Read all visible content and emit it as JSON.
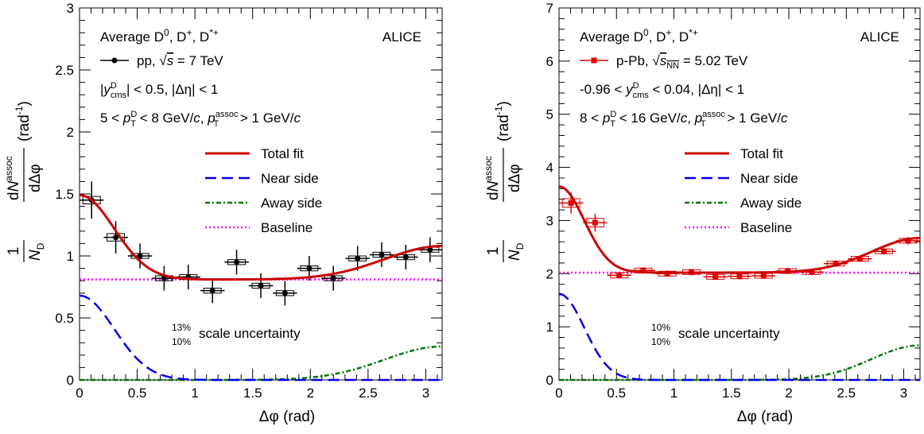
{
  "chart_data": [
    {
      "type": "scatter",
      "xlabel": "Δφ (rad)",
      "ylabel": "1/N_D dN^assoc/dΔφ (rad^-1)",
      "xlim": [
        0,
        3.14159
      ],
      "ylim": [
        0,
        3
      ],
      "xticks": [
        0,
        0.5,
        1,
        1.5,
        2,
        2.5,
        3
      ],
      "yticks": [
        0,
        0.5,
        1,
        1.5,
        2,
        2.5,
        3
      ],
      "xtick_labels": [
        "0",
        "0.5",
        "1",
        "1.5",
        "2",
        "2.5",
        "3"
      ],
      "ytick_labels": [
        "0",
        "0.5",
        "1",
        "1.5",
        "2",
        "2.5",
        "3"
      ],
      "experiment": "ALICE",
      "header": "Average D^0, D^+, D^*+",
      "data_legend": "pp, √s = 7 TeV",
      "cut_lines": [
        "|y^D_cms| < 0.5, |Δη| < 1",
        "5 < p^D_T < 8 GeV/c, p^assoc_T > 1 GeV/c"
      ],
      "legend": [
        "Total fit",
        "Near side",
        "Away side",
        "Baseline"
      ],
      "scale_uncertainty": {
        "up": "13%",
        "down": "10%",
        "text": "scale uncertainty"
      },
      "marker_color": "#000000",
      "fit": {
        "baseline": 0.81,
        "near_amp": 0.68,
        "near_sigma": 0.3,
        "away_amp": 0.27,
        "away_sigma": 0.5
      },
      "points": [
        {
          "x": 0.105,
          "y": 1.45,
          "yerr": 0.15,
          "sys": 0.03
        },
        {
          "x": 0.314,
          "y": 1.15,
          "yerr": 0.13,
          "sys": 0.03
        },
        {
          "x": 0.524,
          "y": 1.0,
          "yerr": 0.1,
          "sys": 0.02
        },
        {
          "x": 0.733,
          "y": 0.82,
          "yerr": 0.1,
          "sys": 0.02
        },
        {
          "x": 0.942,
          "y": 0.83,
          "yerr": 0.1,
          "sys": 0.02
        },
        {
          "x": 1.152,
          "y": 0.72,
          "yerr": 0.1,
          "sys": 0.02
        },
        {
          "x": 1.361,
          "y": 0.95,
          "yerr": 0.1,
          "sys": 0.02
        },
        {
          "x": 1.571,
          "y": 0.76,
          "yerr": 0.1,
          "sys": 0.02
        },
        {
          "x": 1.78,
          "y": 0.7,
          "yerr": 0.1,
          "sys": 0.02
        },
        {
          "x": 1.99,
          "y": 0.9,
          "yerr": 0.1,
          "sys": 0.02
        },
        {
          "x": 2.199,
          "y": 0.82,
          "yerr": 0.1,
          "sys": 0.02
        },
        {
          "x": 2.409,
          "y": 0.98,
          "yerr": 0.1,
          "sys": 0.02
        },
        {
          "x": 2.618,
          "y": 1.01,
          "yerr": 0.1,
          "sys": 0.02
        },
        {
          "x": 2.827,
          "y": 0.99,
          "yerr": 0.1,
          "sys": 0.02
        },
        {
          "x": 3.037,
          "y": 1.05,
          "yerr": 0.1,
          "sys": 0.02
        }
      ]
    },
    {
      "type": "scatter",
      "xlabel": "Δφ (rad)",
      "ylabel": "1/N_D dN^assoc/dΔφ (rad^-1)",
      "xlim": [
        0,
        3.14159
      ],
      "ylim": [
        0,
        7
      ],
      "xticks": [
        0,
        0.5,
        1,
        1.5,
        2,
        2.5,
        3
      ],
      "yticks": [
        0,
        1,
        2,
        3,
        4,
        5,
        6,
        7
      ],
      "xtick_labels": [
        "0",
        "0.5",
        "1",
        "1.5",
        "2",
        "2.5",
        "3"
      ],
      "ytick_labels": [
        "0",
        "1",
        "2",
        "3",
        "4",
        "5",
        "6",
        "7"
      ],
      "experiment": "ALICE",
      "header": "Average D^0, D^+, D^*+",
      "data_legend": "p-Pb, √s_NN = 5.02 TeV",
      "cut_lines": [
        "-0.96 < y^D_cms < 0.04, |Δη| < 1",
        "8 < p^D_T < 16 GeV/c, p^assoc_T > 1 GeV/c"
      ],
      "legend": [
        "Total fit",
        "Near side",
        "Away side",
        "Baseline"
      ],
      "scale_uncertainty": {
        "up": "10%",
        "down": "10%",
        "text": "scale uncertainty"
      },
      "marker_color": "#e00000",
      "fit": {
        "baseline": 2.02,
        "near_amp": 1.62,
        "near_sigma": 0.22,
        "away_amp": 0.65,
        "away_sigma": 0.42
      },
      "points": [
        {
          "x": 0.105,
          "y": 3.33,
          "yerr": 0.2,
          "sys": 0.08
        },
        {
          "x": 0.314,
          "y": 2.96,
          "yerr": 0.17,
          "sys": 0.08
        },
        {
          "x": 0.524,
          "y": 1.97,
          "yerr": 0.06,
          "sys": 0.05
        },
        {
          "x": 0.733,
          "y": 2.06,
          "yerr": 0.06,
          "sys": 0.03
        },
        {
          "x": 0.942,
          "y": 2.0,
          "yerr": 0.06,
          "sys": 0.03
        },
        {
          "x": 1.152,
          "y": 2.03,
          "yerr": 0.06,
          "sys": 0.03
        },
        {
          "x": 1.361,
          "y": 1.94,
          "yerr": 0.06,
          "sys": 0.03
        },
        {
          "x": 1.571,
          "y": 1.95,
          "yerr": 0.06,
          "sys": 0.03
        },
        {
          "x": 1.78,
          "y": 1.96,
          "yerr": 0.06,
          "sys": 0.03
        },
        {
          "x": 1.99,
          "y": 2.05,
          "yerr": 0.06,
          "sys": 0.03
        },
        {
          "x": 2.199,
          "y": 2.03,
          "yerr": 0.06,
          "sys": 0.03
        },
        {
          "x": 2.409,
          "y": 2.19,
          "yerr": 0.06,
          "sys": 0.03
        },
        {
          "x": 2.618,
          "y": 2.28,
          "yerr": 0.06,
          "sys": 0.03
        },
        {
          "x": 2.827,
          "y": 2.42,
          "yerr": 0.06,
          "sys": 0.03
        },
        {
          "x": 3.037,
          "y": 2.62,
          "yerr": 0.07,
          "sys": 0.03
        }
      ]
    }
  ],
  "colors": {
    "total_fit": "#cc0000",
    "near_side": "#0000ee",
    "away_side": "#007700",
    "baseline": "#ff00ff"
  }
}
